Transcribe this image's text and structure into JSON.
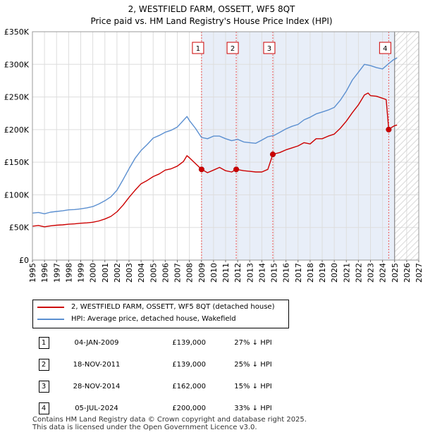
{
  "chart_data": {
    "type": "line",
    "title": "2, WESTFIELD FARM, OSSETT, WF5 8QT",
    "subtitle": "Price paid vs. HM Land Registry's House Price Index (HPI)",
    "xlabel": "",
    "ylabel": "",
    "xlim": [
      1995,
      2027
    ],
    "ylim": [
      0,
      350000
    ],
    "x_ticks": [
      "1995",
      "1996",
      "1997",
      "1998",
      "1999",
      "2000",
      "2001",
      "2002",
      "2003",
      "2004",
      "2005",
      "2006",
      "2007",
      "2008",
      "2009",
      "2010",
      "2011",
      "2012",
      "2013",
      "2014",
      "2015",
      "2016",
      "2017",
      "2018",
      "2019",
      "2020",
      "2021",
      "2022",
      "2023",
      "2024",
      "2025",
      "2026",
      "2027"
    ],
    "y_ticks": [
      {
        "value": 0,
        "label": "£0"
      },
      {
        "value": 50000,
        "label": "£50K"
      },
      {
        "value": 100000,
        "label": "£100K"
      },
      {
        "value": 150000,
        "label": "£150K"
      },
      {
        "value": 200000,
        "label": "£200K"
      },
      {
        "value": 250000,
        "label": "£250K"
      },
      {
        "value": 300000,
        "label": "£300K"
      },
      {
        "value": 350000,
        "label": "£350K"
      }
    ],
    "grid": true,
    "forecast_start": 2025.0,
    "series": [
      {
        "name": "2, WESTFIELD FARM, OSSETT, WF5 8QT (detached house)",
        "color": "#cc0000",
        "points": [
          [
            1995.0,
            52000
          ],
          [
            1995.5,
            53000
          ],
          [
            1996.0,
            51000
          ],
          [
            1996.5,
            52500
          ],
          [
            1997.0,
            53500
          ],
          [
            1997.5,
            54000
          ],
          [
            1998.0,
            55000
          ],
          [
            1998.5,
            55500
          ],
          [
            1999.0,
            56500
          ],
          [
            1999.5,
            57000
          ],
          [
            2000.0,
            58000
          ],
          [
            2000.5,
            60000
          ],
          [
            2001.0,
            63000
          ],
          [
            2001.5,
            67000
          ],
          [
            2002.0,
            74000
          ],
          [
            2002.5,
            84000
          ],
          [
            2003.0,
            96000
          ],
          [
            2003.5,
            107000
          ],
          [
            2004.0,
            117000
          ],
          [
            2004.5,
            122000
          ],
          [
            2005.0,
            128000
          ],
          [
            2005.5,
            132000
          ],
          [
            2006.0,
            138000
          ],
          [
            2006.5,
            140000
          ],
          [
            2007.0,
            144000
          ],
          [
            2007.5,
            151000
          ],
          [
            2007.8,
            160000
          ],
          [
            2008.0,
            157000
          ],
          [
            2008.5,
            148000
          ],
          [
            2009.01,
            139000
          ],
          [
            2009.5,
            134000
          ],
          [
            2010.0,
            138000
          ],
          [
            2010.5,
            142000
          ],
          [
            2011.0,
            137000
          ],
          [
            2011.5,
            135000
          ],
          [
            2011.88,
            139000
          ],
          [
            2012.5,
            137000
          ],
          [
            2013.0,
            136000
          ],
          [
            2013.5,
            135000
          ],
          [
            2014.0,
            135000
          ],
          [
            2014.5,
            139000
          ],
          [
            2014.91,
            162000
          ],
          [
            2015.5,
            165000
          ],
          [
            2016.0,
            169000
          ],
          [
            2016.5,
            172000
          ],
          [
            2017.0,
            175000
          ],
          [
            2017.5,
            180000
          ],
          [
            2018.0,
            178000
          ],
          [
            2018.5,
            186000
          ],
          [
            2019.0,
            186000
          ],
          [
            2019.5,
            190000
          ],
          [
            2020.0,
            193000
          ],
          [
            2020.5,
            202000
          ],
          [
            2021.0,
            213000
          ],
          [
            2021.5,
            226000
          ],
          [
            2022.0,
            238000
          ],
          [
            2022.5,
            253000
          ],
          [
            2022.8,
            256000
          ],
          [
            2023.0,
            252000
          ],
          [
            2023.5,
            251000
          ],
          [
            2024.0,
            248000
          ],
          [
            2024.3,
            246000
          ],
          [
            2024.51,
            200000
          ],
          [
            2024.8,
            204000
          ],
          [
            2025.0,
            206000
          ],
          [
            2025.2,
            207000
          ]
        ]
      },
      {
        "name": "HPI: Average price, detached house, Wakefield",
        "color": "#5b8fd0",
        "points": [
          [
            1995.0,
            72000
          ],
          [
            1995.5,
            73000
          ],
          [
            1996.0,
            71000
          ],
          [
            1996.5,
            73500
          ],
          [
            1997.0,
            74500
          ],
          [
            1997.5,
            75500
          ],
          [
            1998.0,
            77000
          ],
          [
            1998.5,
            77500
          ],
          [
            1999.0,
            78500
          ],
          [
            1999.5,
            80000
          ],
          [
            2000.0,
            82000
          ],
          [
            2000.5,
            86000
          ],
          [
            2001.0,
            91000
          ],
          [
            2001.5,
            97000
          ],
          [
            2002.0,
            107000
          ],
          [
            2002.5,
            123000
          ],
          [
            2003.0,
            140000
          ],
          [
            2003.5,
            156000
          ],
          [
            2004.0,
            168000
          ],
          [
            2004.5,
            177000
          ],
          [
            2005.0,
            187000
          ],
          [
            2005.5,
            191000
          ],
          [
            2006.0,
            196000
          ],
          [
            2006.5,
            199000
          ],
          [
            2007.0,
            204000
          ],
          [
            2007.5,
            214000
          ],
          [
            2007.8,
            220000
          ],
          [
            2008.0,
            214000
          ],
          [
            2008.5,
            202000
          ],
          [
            2009.0,
            188000
          ],
          [
            2009.5,
            186000
          ],
          [
            2010.0,
            190000
          ],
          [
            2010.5,
            190000
          ],
          [
            2011.0,
            186000
          ],
          [
            2011.5,
            183000
          ],
          [
            2012.0,
            185000
          ],
          [
            2012.5,
            181000
          ],
          [
            2013.0,
            180000
          ],
          [
            2013.5,
            179000
          ],
          [
            2014.0,
            184000
          ],
          [
            2014.5,
            189000
          ],
          [
            2015.0,
            191000
          ],
          [
            2015.5,
            196000
          ],
          [
            2016.0,
            201000
          ],
          [
            2016.5,
            205000
          ],
          [
            2017.0,
            208000
          ],
          [
            2017.5,
            215000
          ],
          [
            2018.0,
            219000
          ],
          [
            2018.5,
            224000
          ],
          [
            2019.0,
            227000
          ],
          [
            2019.5,
            230000
          ],
          [
            2020.0,
            234000
          ],
          [
            2020.5,
            245000
          ],
          [
            2021.0,
            259000
          ],
          [
            2021.5,
            276000
          ],
          [
            2022.0,
            288000
          ],
          [
            2022.5,
            300000
          ],
          [
            2023.0,
            298000
          ],
          [
            2023.5,
            295000
          ],
          [
            2024.0,
            293000
          ],
          [
            2024.5,
            301000
          ],
          [
            2024.9,
            307000
          ],
          [
            2025.0,
            308000
          ],
          [
            2025.2,
            310000
          ]
        ]
      }
    ],
    "sales": [
      {
        "label": "1",
        "x": 2009.01,
        "price": 139000
      },
      {
        "label": "2",
        "x": 2011.88,
        "price": 139000
      },
      {
        "label": "3",
        "x": 2014.91,
        "price": 162000
      },
      {
        "label": "4",
        "x": 2024.51,
        "price": 200000
      }
    ],
    "colors": {
      "sale_band": "#e8eef8",
      "marker_line": "#ee5555",
      "hatch": "#cccccc",
      "grid": "#dddddd"
    }
  },
  "legend": {
    "items": [
      {
        "label": "2, WESTFIELD FARM, OSSETT, WF5 8QT (detached house)",
        "color": "#cc0000"
      },
      {
        "label": "HPI: Average price, detached house, Wakefield",
        "color": "#5b8fd0"
      }
    ]
  },
  "transactions": [
    {
      "num": "1",
      "date": "04-JAN-2009",
      "price": "£139,000",
      "hpi": "27% ↓ HPI"
    },
    {
      "num": "2",
      "date": "18-NOV-2011",
      "price": "£139,000",
      "hpi": "25% ↓ HPI"
    },
    {
      "num": "3",
      "date": "28-NOV-2014",
      "price": "£162,000",
      "hpi": "15% ↓ HPI"
    },
    {
      "num": "4",
      "date": "05-JUL-2024",
      "price": "£200,000",
      "hpi": "33% ↓ HPI"
    }
  ],
  "footer": {
    "line1": "Contains HM Land Registry data © Crown copyright and database right 2025.",
    "line2": "This data is licensed under the Open Government Licence v3.0."
  }
}
